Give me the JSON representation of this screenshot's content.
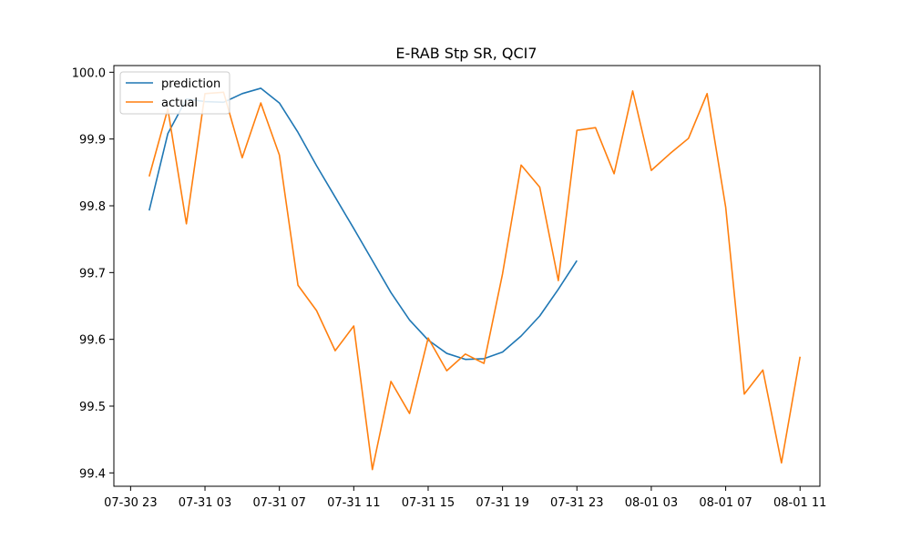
{
  "chart_data": {
    "type": "line",
    "title": "E-RAB Stp SR, QCI7",
    "xlabel": "",
    "ylabel": "",
    "x_ticks": [
      "07-30 23",
      "07-31 03",
      "07-31 07",
      "07-31 11",
      "07-31 15",
      "07-31 19",
      "07-31 23",
      "08-01 03",
      "08-01 07",
      "08-01 11"
    ],
    "x_range": [
      "07-30 22:06",
      "08-01 12:04"
    ],
    "y_ticks": [
      "99.4",
      "99.5",
      "99.6",
      "99.7",
      "99.8",
      "99.9",
      "100.0"
    ],
    "ylim": [
      99.38,
      100.01
    ],
    "grid": false,
    "legend_position": "top-left",
    "series": [
      {
        "name": "prediction",
        "color": "#1f77b4",
        "x": [
          "07-31 00:00",
          "07-31 01:00",
          "07-31 02:00",
          "07-31 03:00",
          "07-31 04:00",
          "07-31 05:00",
          "07-31 06:00",
          "07-31 07:00",
          "07-31 08:00",
          "07-31 09:00",
          "07-31 10:00",
          "07-31 11:00",
          "07-31 12:00",
          "07-31 13:00",
          "07-31 14:00",
          "07-31 15:00",
          "07-31 16:00",
          "07-31 17:00",
          "07-31 18:00",
          "07-31 19:00",
          "07-31 20:00",
          "07-31 21:00",
          "07-31 22:00",
          "07-31 23:00"
        ],
        "values": [
          99.793,
          99.908,
          99.96,
          99.956,
          99.955,
          99.968,
          99.976,
          99.954,
          99.91,
          99.86,
          99.813,
          99.766,
          99.718,
          99.67,
          99.629,
          99.599,
          99.579,
          99.57,
          99.571,
          99.581,
          99.605,
          99.635,
          99.675,
          99.718
        ]
      },
      {
        "name": "actual",
        "color": "#ff7f0e",
        "x": [
          "07-31 00:00",
          "07-31 01:00",
          "07-31 02:00",
          "07-31 03:00",
          "07-31 04:00",
          "07-31 05:00",
          "07-31 06:00",
          "07-31 07:00",
          "07-31 08:00",
          "07-31 09:00",
          "07-31 10:00",
          "07-31 11:00",
          "07-31 12:00",
          "07-31 13:00",
          "07-31 14:00",
          "07-31 15:00",
          "07-31 16:00",
          "07-31 17:00",
          "07-31 18:00",
          "07-31 19:00",
          "07-31 20:00",
          "07-31 21:00",
          "07-31 22:00",
          "07-31 23:00",
          "08-01 00:00",
          "08-01 01:00",
          "08-01 02:00",
          "08-01 03:00",
          "08-01 04:00",
          "08-01 05:00",
          "08-01 06:00",
          "08-01 07:00",
          "08-01 08:00",
          "08-01 09:00",
          "08-01 10:00",
          "08-01 11:00"
        ],
        "values": [
          99.844,
          99.945,
          99.773,
          99.968,
          99.97,
          99.872,
          99.954,
          99.876,
          99.681,
          99.643,
          99.583,
          99.62,
          99.405,
          99.537,
          99.489,
          99.602,
          99.553,
          99.578,
          99.564,
          99.698,
          99.861,
          99.828,
          99.688,
          99.913,
          99.917,
          99.848,
          99.972,
          99.853,
          99.878,
          99.901,
          99.968,
          99.798,
          99.518,
          99.554,
          99.415,
          99.574
        ]
      }
    ]
  }
}
